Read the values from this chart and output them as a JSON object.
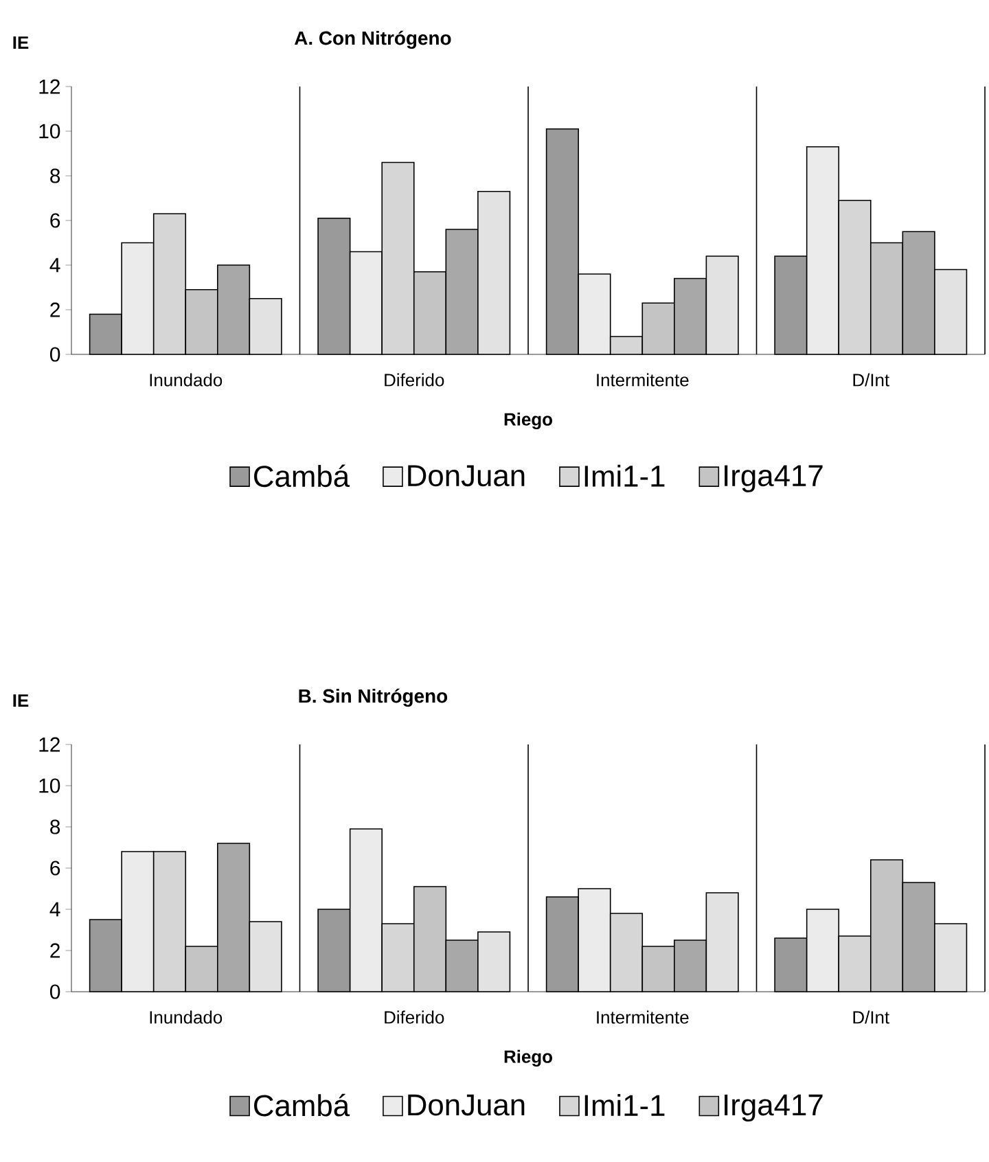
{
  "chart_data": [
    {
      "type": "bar",
      "title": "A. Con Nitrógeno",
      "ylabel": "IE",
      "xlabel": "Riego",
      "categories": [
        "Inundado",
        "Diferido",
        "Intermitente",
        "D/Int"
      ],
      "ylim": [
        0,
        12
      ],
      "yticks": [
        0,
        2,
        4,
        6,
        8,
        10,
        12
      ],
      "legend": "bottom",
      "series": [
        {
          "name": "Cambá",
          "color": "#9a9a9a",
          "values": [
            1.8,
            6.1,
            10.1,
            4.4
          ]
        },
        {
          "name": "DonJuan",
          "color": "#ebebeb",
          "values": [
            5.0,
            4.6,
            3.6,
            9.3
          ]
        },
        {
          "name": "Imi1-1",
          "color": "#d6d6d6",
          "values": [
            6.3,
            8.6,
            0.8,
            6.9
          ]
        },
        {
          "name": "Irga417",
          "color": "#c4c4c4",
          "values": [
            2.9,
            3.7,
            2.3,
            5.0
          ]
        },
        {
          "color": "#a8a8a8",
          "values": [
            4.0,
            5.6,
            3.4,
            5.5
          ]
        },
        {
          "color": "#e2e2e2",
          "values": [
            2.5,
            7.3,
            4.4,
            3.8
          ]
        }
      ]
    },
    {
      "type": "bar",
      "title": "B. Sin Nitrógeno",
      "ylabel": "IE",
      "xlabel": "Riego",
      "categories": [
        "Inundado",
        "Diferido",
        "Intermitente",
        "D/Int"
      ],
      "ylim": [
        0,
        12
      ],
      "yticks": [
        0,
        2,
        4,
        6,
        8,
        10,
        12
      ],
      "legend": "bottom",
      "series": [
        {
          "name": "Cambá",
          "color": "#9a9a9a",
          "values": [
            3.5,
            4.0,
            4.6,
            2.6
          ]
        },
        {
          "name": "DonJuan",
          "color": "#ebebeb",
          "values": [
            6.8,
            7.9,
            5.0,
            4.0
          ]
        },
        {
          "name": "Imi1-1",
          "color": "#d6d6d6",
          "values": [
            6.8,
            3.3,
            3.8,
            2.7
          ]
        },
        {
          "name": "Irga417",
          "color": "#c4c4c4",
          "values": [
            2.2,
            5.1,
            2.2,
            6.4
          ]
        },
        {
          "color": "#a8a8a8",
          "values": [
            7.2,
            2.5,
            2.5,
            5.3
          ]
        },
        {
          "color": "#e2e2e2",
          "values": [
            3.4,
            2.9,
            4.8,
            3.3
          ]
        }
      ]
    }
  ]
}
